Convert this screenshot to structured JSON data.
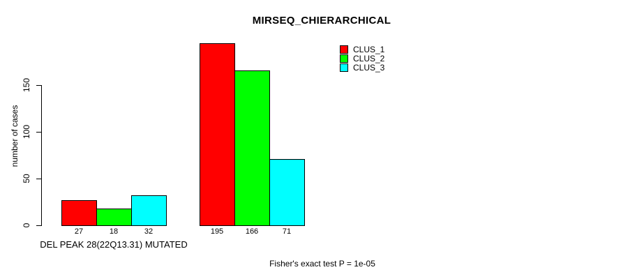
{
  "figure": {
    "background": "#ffffff",
    "text_color": "#000000"
  },
  "chart_data": {
    "type": "bar",
    "title": "MIRSEQ_CHIERARCHICAL",
    "ylabel": "number of cases",
    "xlabel": "DEL PEAK 28(22Q13.31) MUTATED",
    "annotation": "Fisher's exact test P = 1e-05",
    "yticks": [
      0,
      50,
      100,
      150
    ],
    "ylim": [
      0,
      201
    ],
    "grid": false,
    "legend_position": "top-right",
    "group_count": 2,
    "xlabel_under_group": 1,
    "series": [
      {
        "name": "CLUS_1",
        "color": "#ff0000",
        "values": [
          27,
          195
        ]
      },
      {
        "name": "CLUS_2",
        "color": "#00ff00",
        "values": [
          18,
          166
        ]
      },
      {
        "name": "CLUS_3",
        "color": "#00ffff",
        "values": [
          32,
          71
        ]
      }
    ],
    "bar_value_labels": [
      [
        27,
        18,
        32
      ],
      [
        195,
        166,
        71
      ]
    ]
  }
}
